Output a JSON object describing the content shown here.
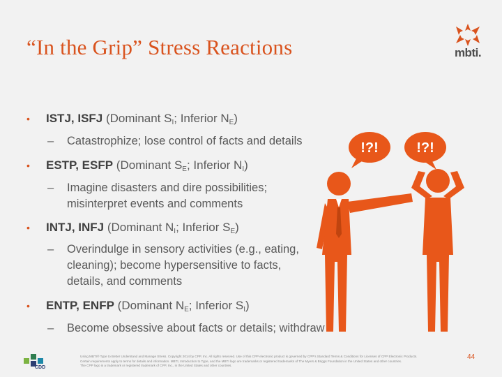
{
  "title": "“In the Grip” Stress Reactions",
  "logo": {
    "text": "mbti."
  },
  "bullets": [
    {
      "types": "ISTJ, ISFJ",
      "paren_open": "(Dominant S",
      "dom_sub": "I",
      "mid": "; Inferior N",
      "inf_sub": "E",
      "close": ")",
      "sub": [
        "Catastrophize; lose control of facts and details"
      ]
    },
    {
      "types": "ESTP, ESFP",
      "paren_open": "(Dominant S",
      "dom_sub": "E",
      "mid": "; Inferior N",
      "inf_sub": "I",
      "close": ")",
      "sub": [
        "Imagine disasters and dire possibilities;",
        "misinterpret events and comments"
      ]
    },
    {
      "types": "INTJ, INFJ",
      "paren_open": "(Dominant N",
      "dom_sub": "I",
      "mid": "; Inferior S",
      "inf_sub": "E",
      "close": ")",
      "sub": [
        "Overindulge in sensory activities (e.g., eating,",
        "cleaning); become hypersensitive to facts,",
        "details, and comments"
      ]
    },
    {
      "types": "ENTP, ENFP",
      "paren_open": "(Dominant N",
      "dom_sub": "E",
      "mid": "; Inferior S",
      "inf_sub": "I",
      "close": ")",
      "sub": [
        "Become obsessive about facts or details; withdraw"
      ]
    }
  ],
  "bubbles": {
    "left": "!?!",
    "right": "!?!"
  },
  "footer": {
    "lines": [
      "Using MBTI® Type to Better Understand and Manage Stress. Copyright 2014 by CPP, Inc. All rights reserved. Use of this CPP electronic product is governed by CPP's Standard Terms & Conditions for Licenses of CPP Electronic Products.",
      "Certain requirements apply to terms for details and information. MBTI, Introduction to Type, and the MBTI logo are trademarks or registered trademarks of The Myers & Briggs Foundation in the United States and other countries.",
      "The CPP logo is a trademark or registered trademark of CPP, Inc., in the United States and other countries."
    ],
    "brand": "CDD"
  },
  "page_number": "44",
  "colors": {
    "accent": "#d9531e",
    "figure": "#e8571a",
    "text": "#595959"
  }
}
